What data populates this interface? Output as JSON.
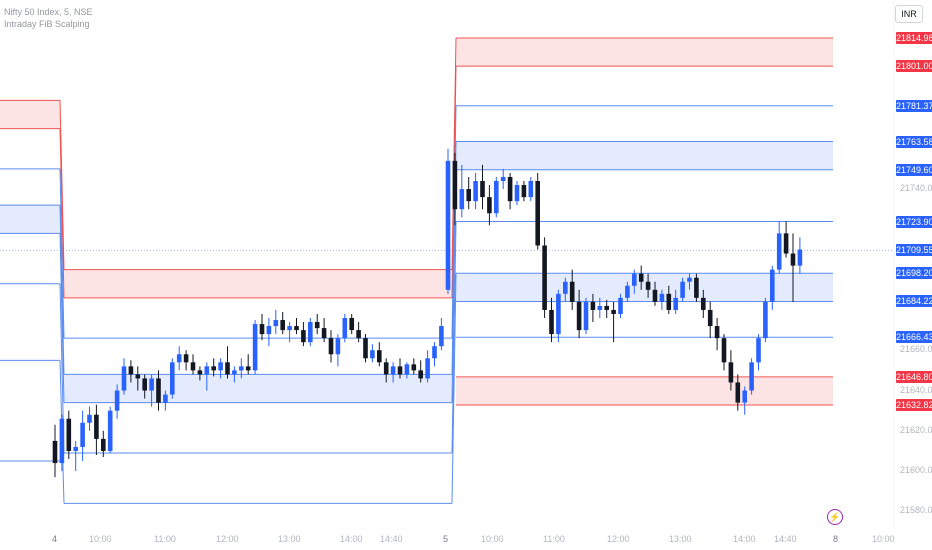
{
  "legend": {
    "symbol": "Nifty 50 Index, 5, NSE",
    "indicator": "Intraday FiB Scalping"
  },
  "currency": "INR",
  "colors": {
    "bull": "#2962ff",
    "bear": "#131722",
    "resistance_line": "#ef5350",
    "resistance_fill": "#fde4e4",
    "support_line": "#5b8def",
    "support_fill": "#e3ebfd",
    "red_tag": "#f23645",
    "blue_tag": "#2962ff"
  },
  "chart_data": {
    "type": "candlestick",
    "symbol": "Nifty 50 Index",
    "timeframe": "5",
    "exchange": "NSE",
    "ylim": [
      21572,
      21830
    ],
    "y_ticks": [
      21740,
      21660,
      21640,
      21620,
      21600,
      21580
    ],
    "x_ticks": [
      "4",
      "10:00",
      "11:00",
      "12:00",
      "13:00",
      "14:00",
      "14:40",
      "5",
      "10:00",
      "11:00",
      "12:00",
      "13:00",
      "14:00",
      "14:40",
      "8",
      "10:00"
    ],
    "price_labels": [
      {
        "value": "21814.98",
        "color": "red"
      },
      {
        "value": "21801.00",
        "color": "red"
      },
      {
        "value": "21781.37",
        "color": "blue"
      },
      {
        "value": "21763.58",
        "color": "blue"
      },
      {
        "value": "21749.60",
        "color": "blue"
      },
      {
        "value": "21723.90",
        "color": "blue"
      },
      {
        "value": "21709.55",
        "color": "blue"
      },
      {
        "value": "21698.20",
        "color": "blue"
      },
      {
        "value": "21684.22",
        "color": "blue"
      },
      {
        "value": "21666.43",
        "color": "blue"
      },
      {
        "value": "21646.80",
        "color": "red"
      },
      {
        "value": "21632.82",
        "color": "red"
      }
    ],
    "current_price": 21709.55,
    "levels_day1": [
      {
        "price": 21784,
        "color": "red"
      },
      {
        "price": 21770,
        "color": "red"
      },
      {
        "price": 21750,
        "color": "blue"
      },
      {
        "price": 21732,
        "color": "blue"
      },
      {
        "price": 21718,
        "color": "blue"
      },
      {
        "price": 21693,
        "color": "blue"
      },
      {
        "price": 21655,
        "color": "blue"
      },
      {
        "price": 21605,
        "color": "blue"
      }
    ],
    "bands_day1": [
      {
        "top": 21784,
        "bottom": 21770,
        "color": "red"
      },
      {
        "top": 21732,
        "bottom": 21718,
        "color": "blue"
      }
    ],
    "levels_day2": [
      {
        "price": 21700,
        "color": "red"
      },
      {
        "price": 21686,
        "color": "red"
      },
      {
        "price": 21666,
        "color": "blue"
      },
      {
        "price": 21648,
        "color": "blue"
      },
      {
        "price": 21634,
        "color": "blue"
      },
      {
        "price": 21609,
        "color": "blue"
      },
      {
        "price": 21584,
        "color": "blue"
      }
    ],
    "bands_day2": [
      {
        "top": 21700,
        "bottom": 21686,
        "color": "red"
      },
      {
        "top": 21648,
        "bottom": 21634,
        "color": "blue"
      }
    ],
    "levels_day3": [
      {
        "price": 21814.98,
        "color": "red"
      },
      {
        "price": 21801.0,
        "color": "red"
      },
      {
        "price": 21781.37,
        "color": "blue"
      },
      {
        "price": 21763.58,
        "color": "blue"
      },
      {
        "price": 21749.6,
        "color": "blue"
      },
      {
        "price": 21723.9,
        "color": "blue"
      },
      {
        "price": 21698.2,
        "color": "blue"
      },
      {
        "price": 21684.22,
        "color": "blue"
      },
      {
        "price": 21666.43,
        "color": "blue"
      },
      {
        "price": 21646.8,
        "color": "red"
      },
      {
        "price": 21632.82,
        "color": "red"
      }
    ],
    "bands_day3": [
      {
        "top": 21814.98,
        "bottom": 21801.0,
        "color": "red"
      },
      {
        "top": 21763.58,
        "bottom": 21749.6,
        "color": "blue"
      },
      {
        "top": 21698.2,
        "bottom": 21684.22,
        "color": "blue"
      },
      {
        "top": 21646.8,
        "bottom": 21632.82,
        "color": "red"
      }
    ],
    "candles": [
      [
        21615,
        21623,
        21597,
        21604
      ],
      [
        21604,
        21628,
        21600,
        21626
      ],
      [
        21626,
        21630,
        21606,
        21610
      ],
      [
        21610,
        21615,
        21600,
        21612
      ],
      [
        21612,
        21630,
        21605,
        21624
      ],
      [
        21624,
        21632,
        21620,
        21628
      ],
      [
        21628,
        21633,
        21608,
        21616
      ],
      [
        21616,
        21620,
        21607,
        21610
      ],
      [
        21610,
        21632,
        21609,
        21630
      ],
      [
        21630,
        21643,
        21626,
        21640
      ],
      [
        21640,
        21656,
        21638,
        21652
      ],
      [
        21652,
        21655,
        21644,
        21648
      ],
      [
        21648,
        21652,
        21640,
        21646
      ],
      [
        21646,
        21648,
        21636,
        21640
      ],
      [
        21640,
        21648,
        21632,
        21646
      ],
      [
        21646,
        21650,
        21630,
        21634
      ],
      [
        21634,
        21640,
        21630,
        21638
      ],
      [
        21638,
        21656,
        21636,
        21654
      ],
      [
        21654,
        21662,
        21650,
        21658
      ],
      [
        21658,
        21660,
        21650,
        21654
      ],
      [
        21654,
        21658,
        21648,
        21650
      ],
      [
        21650,
        21652,
        21645,
        21648
      ],
      [
        21648,
        21654,
        21640,
        21652
      ],
      [
        21652,
        21656,
        21647,
        21650
      ],
      [
        21650,
        21656,
        21646,
        21654
      ],
      [
        21654,
        21662,
        21646,
        21648
      ],
      [
        21648,
        21652,
        21644,
        21650
      ],
      [
        21650,
        21656,
        21646,
        21652
      ],
      [
        21652,
        21658,
        21648,
        21650
      ],
      [
        21650,
        21675,
        21648,
        21673
      ],
      [
        21673,
        21678,
        21665,
        21668
      ],
      [
        21668,
        21676,
        21662,
        21672
      ],
      [
        21672,
        21680,
        21668,
        21675
      ],
      [
        21675,
        21679,
        21668,
        21670
      ],
      [
        21670,
        21674,
        21664,
        21672
      ],
      [
        21672,
        21676,
        21668,
        21670
      ],
      [
        21670,
        21674,
        21662,
        21664
      ],
      [
        21664,
        21676,
        21662,
        21674
      ],
      [
        21674,
        21678,
        21668,
        21671
      ],
      [
        21671,
        21676,
        21664,
        21666
      ],
      [
        21666,
        21670,
        21654,
        21658
      ],
      [
        21658,
        21668,
        21652,
        21666
      ],
      [
        21666,
        21678,
        21664,
        21676
      ],
      [
        21676,
        21678,
        21668,
        21670
      ],
      [
        21670,
        21674,
        21664,
        21666
      ],
      [
        21666,
        21668,
        21654,
        21656
      ],
      [
        21656,
        21663,
        21654,
        21660
      ],
      [
        21660,
        21664,
        21652,
        21654
      ],
      [
        21654,
        21656,
        21644,
        21648
      ],
      [
        21648,
        21654,
        21644,
        21652
      ],
      [
        21652,
        21656,
        21646,
        21648
      ],
      [
        21648,
        21654,
        21646,
        21653
      ],
      [
        21653,
        21656,
        21648,
        21650
      ],
      [
        21650,
        21655,
        21644,
        21646
      ],
      [
        21646,
        21660,
        21644,
        21656
      ],
      [
        21656,
        21664,
        21652,
        21662
      ],
      [
        21662,
        21676,
        21660,
        21672
      ],
      [
        21690,
        21760,
        21688,
        21754
      ],
      [
        21754,
        21758,
        21722,
        21730
      ],
      [
        21730,
        21752,
        21726,
        21740
      ],
      [
        21740,
        21746,
        21730,
        21734
      ],
      [
        21734,
        21748,
        21730,
        21744
      ],
      [
        21744,
        21752,
        21730,
        21736
      ],
      [
        21736,
        21742,
        21722,
        21728
      ],
      [
        21728,
        21746,
        21726,
        21744
      ],
      [
        21744,
        21750,
        21740,
        21746
      ],
      [
        21746,
        21748,
        21730,
        21734
      ],
      [
        21734,
        21744,
        21732,
        21742
      ],
      [
        21742,
        21744,
        21734,
        21736
      ],
      [
        21736,
        21746,
        21734,
        21744
      ],
      [
        21744,
        21748,
        21710,
        21712
      ],
      [
        21712,
        21716,
        21676,
        21680
      ],
      [
        21680,
        21686,
        21664,
        21668
      ],
      [
        21668,
        21690,
        21664,
        21688
      ],
      [
        21688,
        21696,
        21684,
        21694
      ],
      [
        21694,
        21700,
        21680,
        21684
      ],
      [
        21684,
        21690,
        21666,
        21670
      ],
      [
        21670,
        21686,
        21668,
        21684
      ],
      [
        21684,
        21688,
        21674,
        21680
      ],
      [
        21680,
        21686,
        21676,
        21682
      ],
      [
        21682,
        21685,
        21676,
        21680
      ],
      [
        21680,
        21684,
        21664,
        21678
      ],
      [
        21678,
        21688,
        21676,
        21686
      ],
      [
        21686,
        21694,
        21684,
        21692
      ],
      [
        21692,
        21700,
        21688,
        21698
      ],
      [
        21698,
        21702,
        21690,
        21694
      ],
      [
        21694,
        21698,
        21686,
        21690
      ],
      [
        21690,
        21694,
        21682,
        21684
      ],
      [
        21684,
        21690,
        21680,
        21688
      ],
      [
        21688,
        21692,
        21678,
        21680
      ],
      [
        21680,
        21690,
        21678,
        21686
      ],
      [
        21686,
        21696,
        21684,
        21694
      ],
      [
        21694,
        21698,
        21690,
        21696
      ],
      [
        21696,
        21698,
        21684,
        21686
      ],
      [
        21686,
        21690,
        21676,
        21680
      ],
      [
        21680,
        21684,
        21666,
        21672
      ],
      [
        21672,
        21676,
        21660,
        21666
      ],
      [
        21666,
        21668,
        21650,
        21654
      ],
      [
        21654,
        21660,
        21640,
        21644
      ],
      [
        21644,
        21648,
        21630,
        21634
      ],
      [
        21634,
        21642,
        21628,
        21640
      ],
      [
        21640,
        21656,
        21638,
        21654
      ],
      [
        21654,
        21668,
        21650,
        21666
      ],
      [
        21666,
        21686,
        21664,
        21684
      ],
      [
        21684,
        21702,
        21680,
        21700
      ],
      [
        21700,
        21724,
        21698,
        21718
      ],
      [
        21718,
        21724,
        21706,
        21708
      ],
      [
        21708,
        21718,
        21684,
        21702
      ],
      [
        21702,
        21716,
        21698,
        21710
      ]
    ]
  }
}
